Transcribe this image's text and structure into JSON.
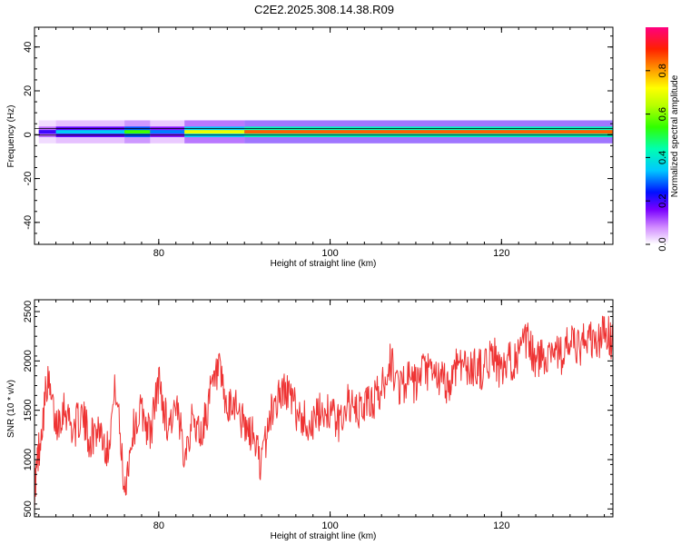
{
  "title": "C2E2.2025.308.14.38.R09",
  "chart_data": [
    {
      "type": "heatmap",
      "name": "spectrogram",
      "xlabel": "Height of straight line (km)",
      "ylabel": "Frequency (Hz)",
      "xlim": [
        65.5,
        133
      ],
      "ylim": [
        -50,
        49
      ],
      "xticks": [
        80,
        100,
        120
      ],
      "yticks": [
        -40,
        -20,
        0,
        20,
        40
      ],
      "band_center_hz": 1.3,
      "band_halfwidth_hz": 1.5,
      "segments": [
        {
          "x0": 66,
          "x1": 68,
          "amplitude": 0.2
        },
        {
          "x0": 68,
          "x1": 76,
          "amplitude": 0.35
        },
        {
          "x0": 76,
          "x1": 79,
          "amplitude": 0.55
        },
        {
          "x0": 79,
          "x1": 83,
          "amplitude": 0.3
        },
        {
          "x0": 83,
          "x1": 90,
          "amplitude": 0.7
        },
        {
          "x0": 90,
          "x1": 133,
          "amplitude": 0.85
        }
      ],
      "colorbar": {
        "label": "Normalized spectral amplitude",
        "min": 0,
        "max": 1,
        "ticks": [
          0.0,
          0.2,
          0.4,
          0.6,
          0.8
        ]
      }
    },
    {
      "type": "line",
      "name": "snr",
      "xlabel": "Height of straight line (km)",
      "ylabel": "SNR (10 * v/v)",
      "xlim": [
        65.5,
        133
      ],
      "ylim": [
        420,
        2620
      ],
      "xticks": [
        80,
        100,
        120
      ],
      "yticks": [
        500,
        1000,
        1500,
        2000,
        2500
      ],
      "color": "#ee3333",
      "series": [
        {
          "name": "SNR",
          "x": [
            65.5,
            66,
            67,
            68,
            69,
            70,
            71,
            72,
            73,
            74,
            75,
            76,
            77,
            78,
            79,
            80,
            81,
            82,
            83,
            84,
            85,
            86,
            87,
            88,
            89,
            90,
            91,
            92,
            93,
            94,
            95,
            96,
            97,
            98,
            99,
            100,
            101,
            102,
            103,
            104,
            105,
            106,
            107,
            108,
            109,
            110,
            111,
            112,
            113,
            114,
            115,
            116,
            117,
            118,
            119,
            120,
            121,
            122,
            123,
            124,
            125,
            126,
            127,
            128,
            129,
            130,
            131,
            132,
            133
          ],
          "values": [
            700,
            1100,
            1800,
            1350,
            1550,
            1300,
            1450,
            1200,
            1350,
            1100,
            1750,
            700,
            1300,
            1500,
            1250,
            1800,
            1350,
            1500,
            1100,
            1400,
            1250,
            1650,
            1900,
            1450,
            1600,
            1300,
            1250,
            950,
            1450,
            1650,
            1700,
            1500,
            1400,
            1350,
            1500,
            1500,
            1350,
            1600,
            1450,
            1550,
            1600,
            1700,
            2000,
            1750,
            1800,
            1750,
            1900,
            1850,
            1800,
            1750,
            2050,
            1900,
            1950,
            1900,
            2100,
            1850,
            2000,
            2050,
            2200,
            2000,
            2050,
            2150,
            2050,
            2200,
            2100,
            2250,
            2150,
            2300,
            2200
          ]
        }
      ]
    }
  ]
}
